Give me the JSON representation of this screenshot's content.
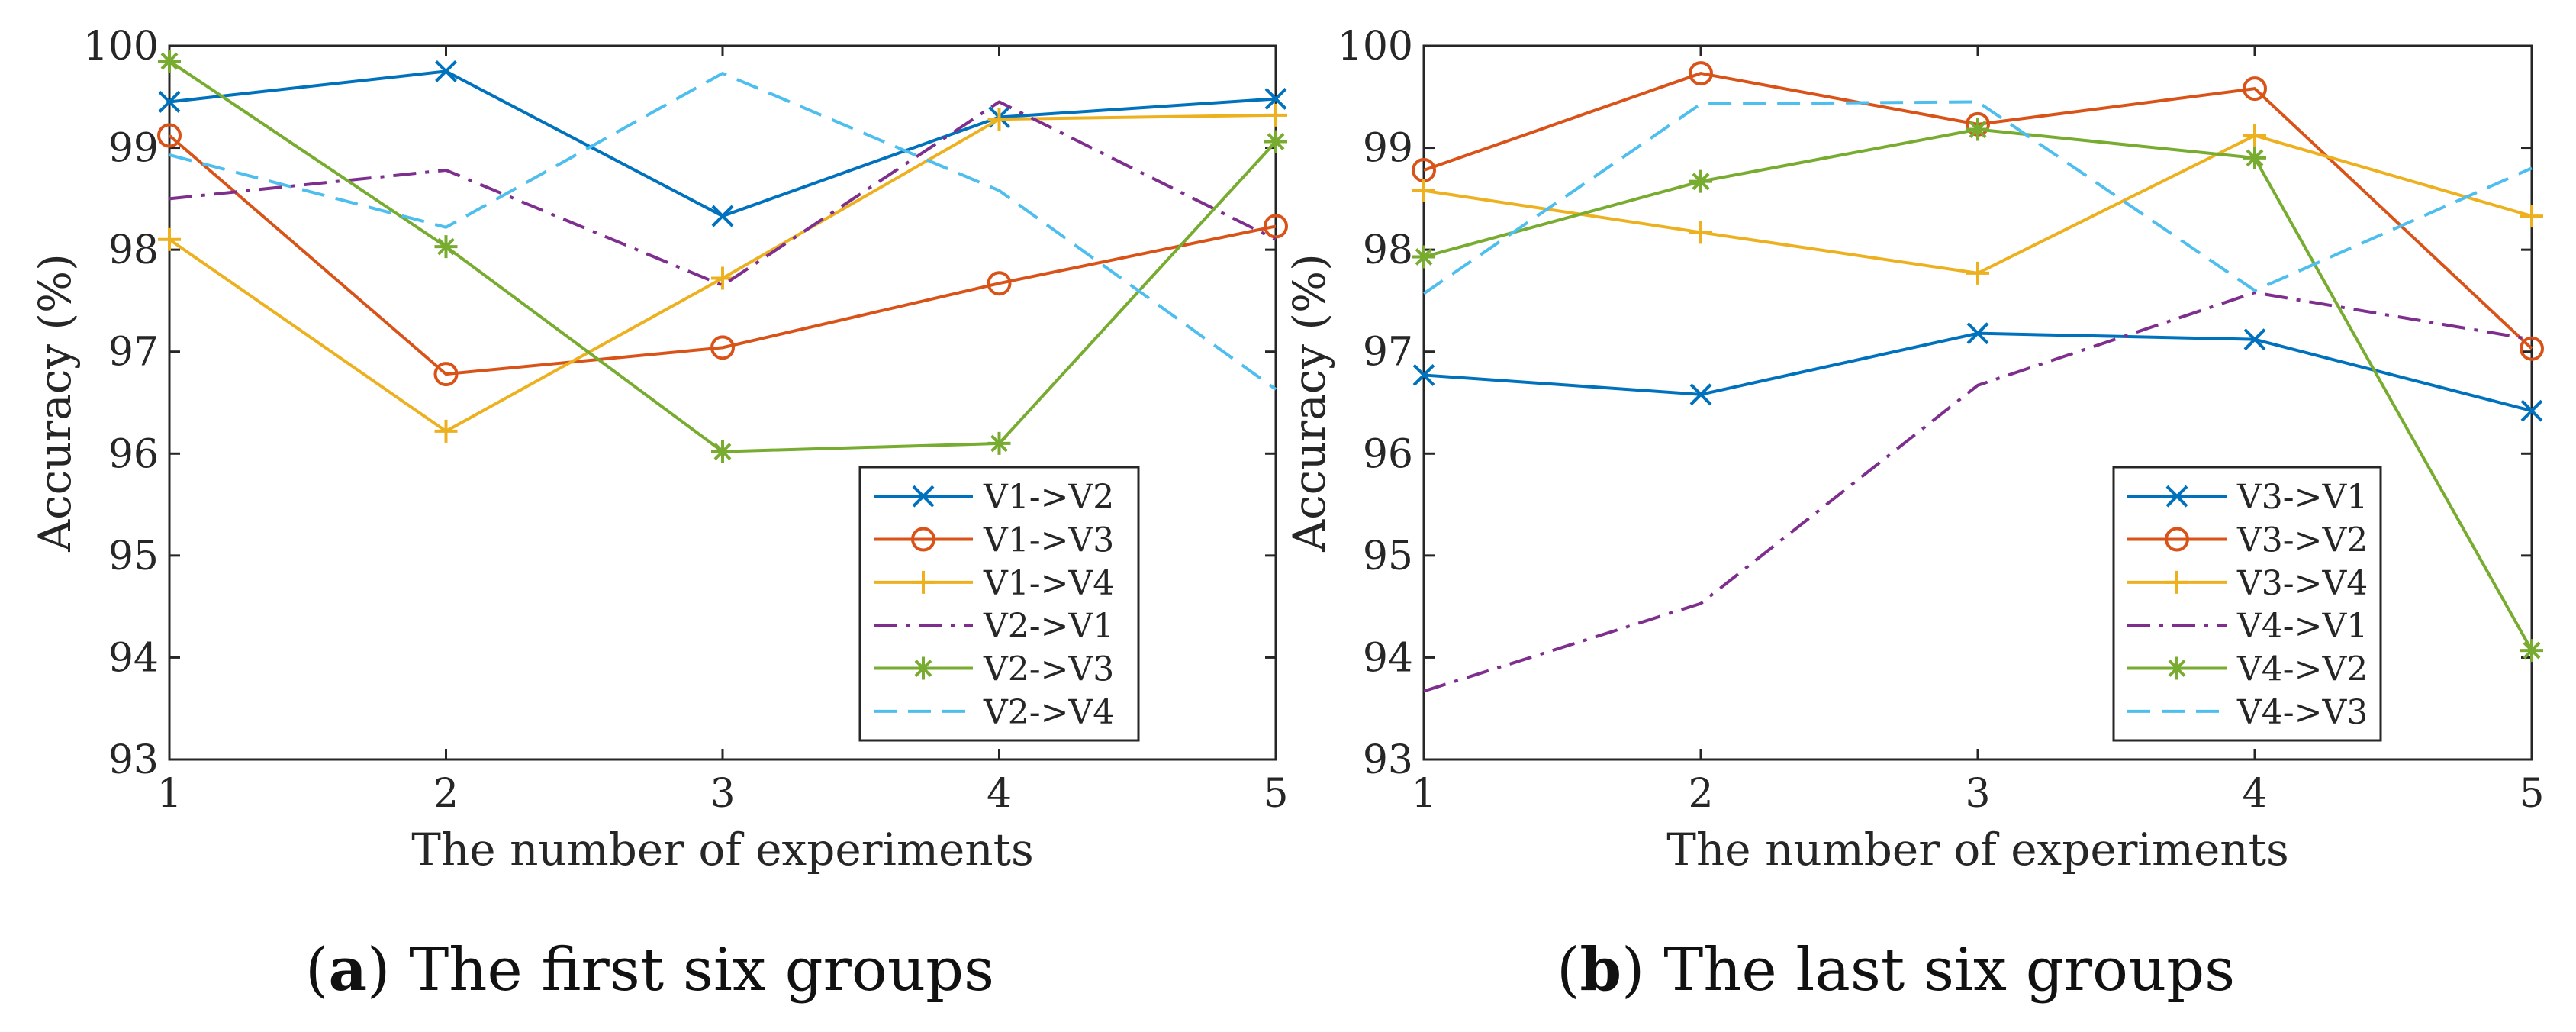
{
  "colors": {
    "series": [
      "#0072BD",
      "#D95319",
      "#EDB120",
      "#7E2F8E",
      "#77AC30",
      "#4DBEEE"
    ],
    "axis": "#262626",
    "text": "#262626"
  },
  "captions": [
    {
      "label": "a",
      "text": "The first six groups"
    },
    {
      "label": "b",
      "text": "The last six groups"
    }
  ],
  "chart_data": [
    {
      "type": "line",
      "title": "",
      "xlabel": "The number of experiments",
      "ylabel": "Accuracy (%)",
      "x": [
        1,
        2,
        3,
        4,
        5
      ],
      "xlim": [
        1,
        5
      ],
      "ylim": [
        93,
        100
      ],
      "xticks": [
        "1",
        "2",
        "3",
        "4",
        "5"
      ],
      "yticks": [
        "93",
        "94",
        "95",
        "96",
        "97",
        "98",
        "99",
        "100"
      ],
      "grid": false,
      "legend_position": "bottom-right",
      "series": [
        {
          "name": "V1->V2",
          "marker": "x",
          "dash": "solid",
          "values": [
            99.45,
            99.75,
            98.33,
            99.3,
            99.48
          ]
        },
        {
          "name": "V1->V3",
          "marker": "o",
          "dash": "solid",
          "values": [
            99.12,
            96.78,
            97.04,
            97.67,
            98.23
          ]
        },
        {
          "name": "V1->V4",
          "marker": "+",
          "dash": "solid",
          "values": [
            98.1,
            96.22,
            97.72,
            99.28,
            99.32
          ]
        },
        {
          "name": "V2->V1",
          "marker": "none",
          "dash": "dashdot",
          "values": [
            98.5,
            98.78,
            97.65,
            99.45,
            98.1
          ]
        },
        {
          "name": "V2->V3",
          "marker": "*",
          "dash": "solid",
          "values": [
            99.85,
            98.03,
            96.02,
            96.1,
            99.06
          ]
        },
        {
          "name": "V2->V4",
          "marker": "none",
          "dash": "dashed",
          "values": [
            98.93,
            98.22,
            99.73,
            98.58,
            96.63
          ]
        }
      ]
    },
    {
      "type": "line",
      "title": "",
      "xlabel": "The number of experiments",
      "ylabel": "Accuracy (%)",
      "x": [
        1,
        2,
        3,
        4,
        5
      ],
      "xlim": [
        1,
        5
      ],
      "ylim": [
        93,
        100
      ],
      "xticks": [
        "1",
        "2",
        "3",
        "4",
        "5"
      ],
      "yticks": [
        "93",
        "94",
        "95",
        "96",
        "97",
        "98",
        "99",
        "100"
      ],
      "grid": false,
      "legend_position": "bottom-right",
      "series": [
        {
          "name": "V3->V1",
          "marker": "x",
          "dash": "solid",
          "values": [
            96.77,
            96.58,
            97.18,
            97.12,
            96.42
          ]
        },
        {
          "name": "V3->V2",
          "marker": "o",
          "dash": "solid",
          "values": [
            98.78,
            99.73,
            99.23,
            99.58,
            97.03
          ]
        },
        {
          "name": "V3->V4",
          "marker": "+",
          "dash": "solid",
          "values": [
            98.58,
            98.17,
            97.77,
            99.12,
            98.33
          ]
        },
        {
          "name": "V4->V1",
          "marker": "none",
          "dash": "dashdot",
          "values": [
            93.67,
            94.53,
            96.67,
            97.58,
            97.12
          ]
        },
        {
          "name": "V4->V2",
          "marker": "*",
          "dash": "solid",
          "values": [
            97.93,
            98.67,
            99.18,
            98.9,
            94.07
          ]
        },
        {
          "name": "V4->V3",
          "marker": "none",
          "dash": "dashed",
          "values": [
            97.57,
            99.43,
            99.45,
            97.6,
            98.8
          ]
        }
      ]
    }
  ]
}
